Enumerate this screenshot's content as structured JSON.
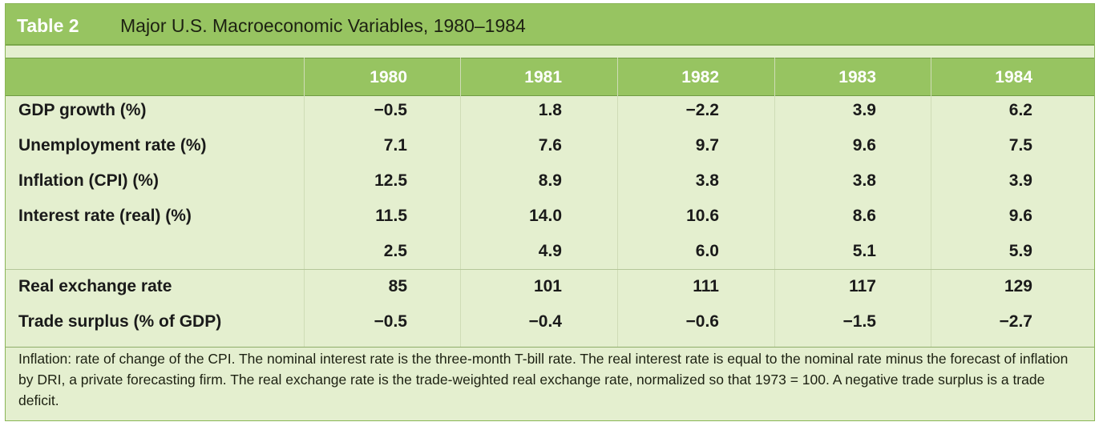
{
  "title": {
    "tag": "Table 2",
    "text": "Major U.S. Macroeconomic Variables, 1980–1984"
  },
  "years": [
    "1980",
    "1981",
    "1982",
    "1983",
    "1984"
  ],
  "rows": [
    {
      "label": "GDP growth (%)",
      "values": [
        "−0.5",
        "1.8",
        "−2.2",
        "3.9",
        "6.2"
      ]
    },
    {
      "label": "Unemployment rate (%)",
      "values": [
        "7.1",
        "7.6",
        "9.7",
        "9.6",
        "7.5"
      ]
    },
    {
      "label": "Inflation (CPI) (%)",
      "values": [
        "12.5",
        "8.9",
        "3.8",
        "3.8",
        "3.9"
      ]
    },
    {
      "label": "Interest rate (real) (%)",
      "values": [
        "11.5",
        "14.0",
        "10.6",
        "8.6",
        "9.6"
      ]
    },
    {
      "label": "",
      "values": [
        "2.5",
        "4.9",
        "6.0",
        "5.1",
        "5.9"
      ]
    },
    {
      "label": "Real exchange rate",
      "values": [
        "85",
        "101",
        "111",
        "117",
        "129"
      ]
    },
    {
      "label": "Trade surplus (% of GDP)",
      "values": [
        "−0.5",
        "−0.4",
        "−0.6",
        "−1.5",
        "−2.7"
      ]
    }
  ],
  "note": "Inflation: rate of change of the CPI. The nominal interest rate is the three-month T-bill rate. The real interest rate is equal to the nominal rate minus the forecast of inflation by DRI, a private forecasting firm. The real exchange rate is the trade-weighted real exchange rate, normalized so that 1973 = 100.  A negative trade surplus is a trade deficit.",
  "colors": {
    "title_bar": "#97c461",
    "body_bg": "#e4efcf",
    "tag_text": "#ffffff"
  }
}
